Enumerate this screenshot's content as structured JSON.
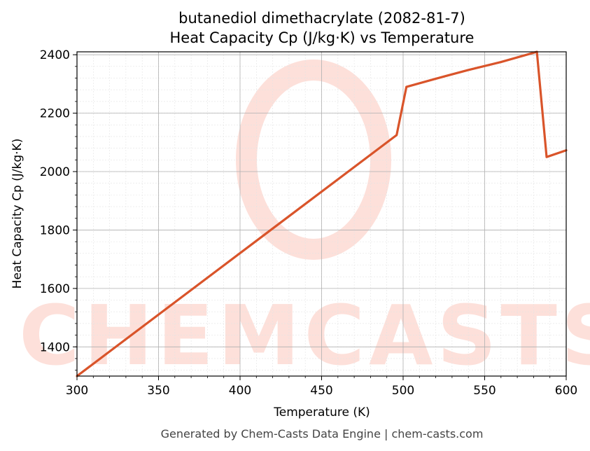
{
  "chart_data": {
    "type": "line",
    "title": "butanediol dimethacrylate (2082-81-7)",
    "subtitle": "Heat Capacity Cp (J/kg·K) vs Temperature",
    "xlabel": "Temperature (K)",
    "ylabel": "Heat Capacity Cp (J/kg·K)",
    "xlim": [
      300,
      600
    ],
    "ylim": [
      1300,
      2410
    ],
    "xticks": [
      300,
      350,
      400,
      450,
      500,
      550,
      600
    ],
    "yticks": [
      1400,
      1600,
      1800,
      2000,
      2200,
      2400
    ],
    "grid": true,
    "series": [
      {
        "color": "#d9542a",
        "x": [
          300,
          496,
          502,
          520,
          540,
          560,
          582,
          588,
          600
        ],
        "y": [
          1300,
          2125,
          2290,
          2318,
          2348,
          2375,
          2410,
          2050,
          2073
        ]
      }
    ]
  },
  "watermark": {
    "text": "CHEMCASTS"
  },
  "footer": "Generated by Chem-Casts Data Engine | chem-casts.com"
}
